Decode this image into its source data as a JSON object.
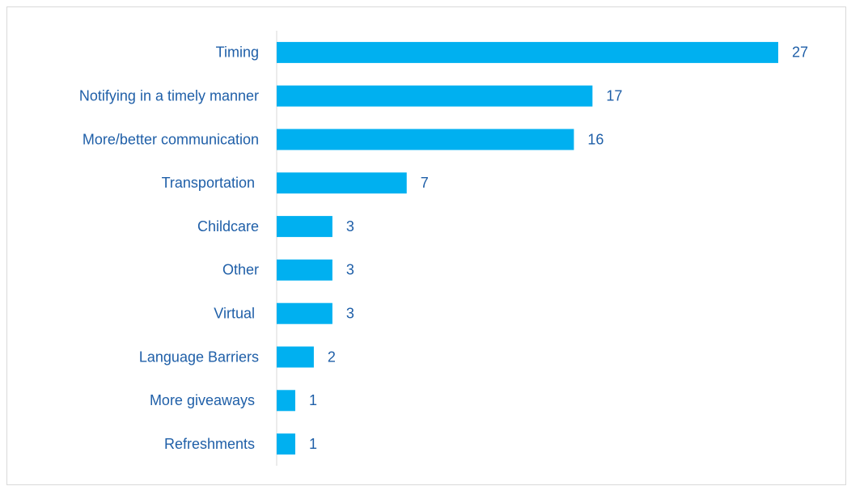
{
  "chart_data": {
    "type": "barh",
    "categories": [
      "Timing",
      "Notifying in a timely manner",
      "More/better communication",
      "Transportation ",
      "Childcare",
      "Other",
      "Virtual ",
      "Language Barriers",
      "More giveaways ",
      "Refreshments "
    ],
    "values": [
      27,
      17,
      16,
      7,
      3,
      3,
      3,
      2,
      1,
      1
    ],
    "color": "#00b0f0"
  }
}
